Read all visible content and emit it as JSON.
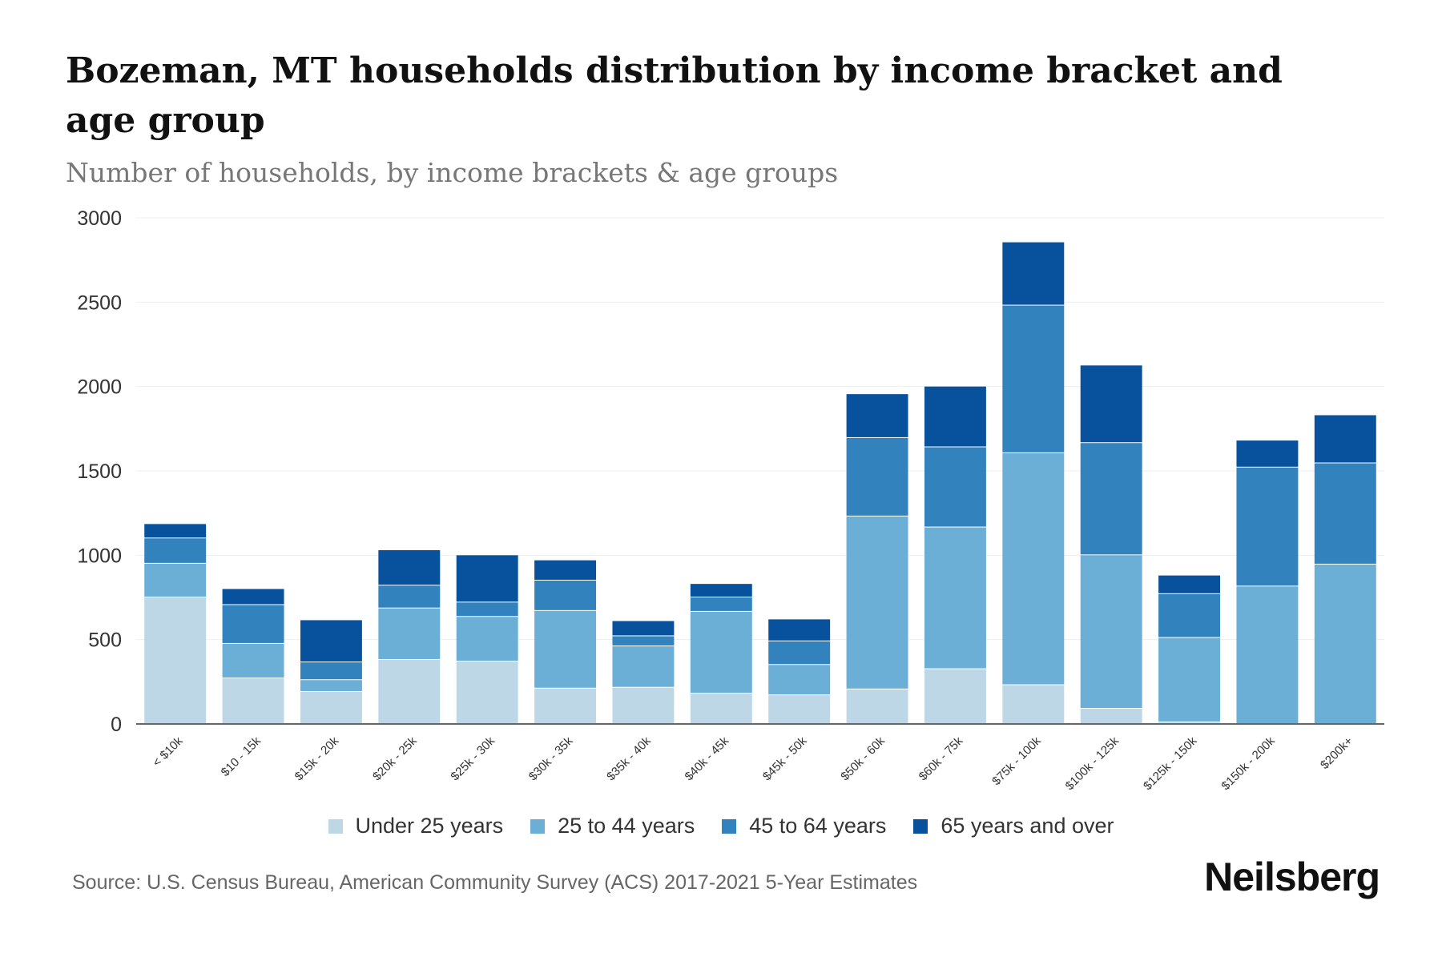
{
  "title": "Bozeman, MT households distribution by income bracket and age group",
  "subtitle": "Number of households, by income brackets & age groups",
  "source": "Source: U.S. Census Bureau, American Community Survey (ACS) 2017-2021 5-Year Estimates",
  "brand": "Neilsberg",
  "chart_data": {
    "type": "bar",
    "stacked": true,
    "title": "Bozeman, MT households distribution by income bracket and age group",
    "subtitle": "Number of households, by income brackets & age groups",
    "xlabel": "",
    "ylabel": "",
    "ylim": [
      0,
      3000
    ],
    "yticks": [
      0,
      500,
      1000,
      1500,
      2000,
      2500,
      3000
    ],
    "grid": true,
    "legend_position": "bottom",
    "categories": [
      "< $10k",
      "$10 - 15k",
      "$15k - 20k",
      "$20k - 25k",
      "$25k - 30k",
      "$30k - 35k",
      "$35k - 40k",
      "$40k - 45k",
      "$45k - 50k",
      "$50k - 60k",
      "$60k - 75k",
      "$75k - 100k",
      "$100k - 125k",
      "$125k - 150k",
      "$150k - 200k",
      "$200k+"
    ],
    "series": [
      {
        "name": "Under 25 years",
        "color": "#bdd7e7",
        "values": [
          750,
          270,
          190,
          380,
          370,
          210,
          215,
          180,
          170,
          205,
          325,
          230,
          90,
          10,
          0,
          0
        ]
      },
      {
        "name": "25 to 44 years",
        "color": "#6baed6",
        "values": [
          200,
          205,
          70,
          305,
          265,
          460,
          245,
          485,
          180,
          1025,
          840,
          1375,
          910,
          500,
          815,
          945
        ]
      },
      {
        "name": "45 to 64 years",
        "color": "#3182bd",
        "values": [
          150,
          230,
          105,
          135,
          85,
          180,
          60,
          85,
          140,
          465,
          475,
          875,
          665,
          260,
          705,
          600
        ]
      },
      {
        "name": "65 years and over",
        "color": "#08519c",
        "values": [
          85,
          95,
          250,
          210,
          280,
          120,
          90,
          80,
          130,
          260,
          360,
          375,
          460,
          110,
          160,
          285
        ]
      }
    ]
  }
}
